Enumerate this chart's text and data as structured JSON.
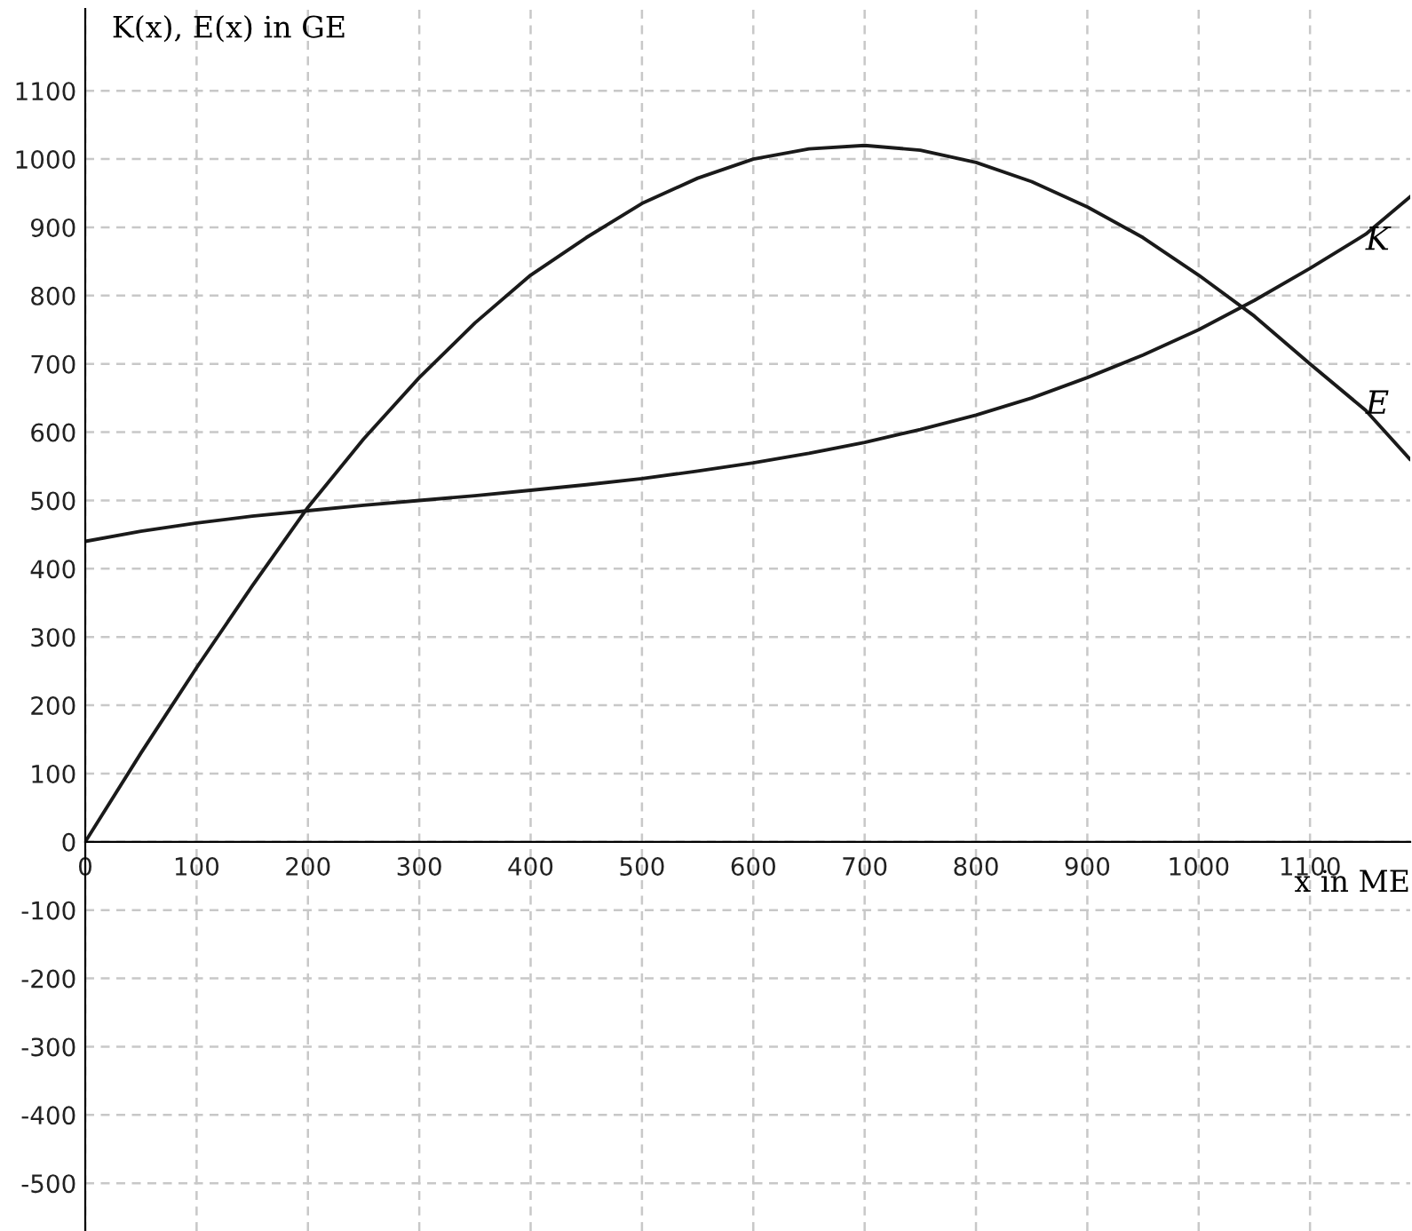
{
  "chart_data": {
    "type": "line",
    "xlabel": "x in ME",
    "ylabel": "K(x), E(x) in GE",
    "x": [
      0,
      50,
      100,
      150,
      200,
      250,
      300,
      350,
      400,
      450,
      500,
      550,
      600,
      650,
      700,
      750,
      800,
      850,
      900,
      950,
      1000,
      1050,
      1100,
      1150,
      1190
    ],
    "series": [
      {
        "color": "#1a1a1a",
        "values": [
          440,
          455,
          467,
          477,
          485,
          493,
          500,
          507,
          515,
          523,
          532,
          543,
          555,
          569,
          585,
          604,
          625,
          650,
          680,
          713,
          750,
          793,
          840,
          890,
          945
        ]
      },
      {
        "color": "#1a1a1a",
        "values": [
          0,
          130,
          255,
          375,
          490,
          590,
          680,
          760,
          830,
          885,
          935,
          972,
          1000,
          1015,
          1020,
          1013,
          995,
          967,
          930,
          885,
          830,
          770,
          700,
          632,
          560
        ]
      }
    ],
    "annotations": [
      {
        "text": "K",
        "x": 1150,
        "y": 880
      },
      {
        "text": "E",
        "x": 1150,
        "y": 640
      }
    ],
    "xlim": [
      0,
      1190
    ],
    "ylim": [
      -570,
      1220
    ],
    "xticks": [
      0,
      100,
      200,
      300,
      400,
      500,
      600,
      700,
      800,
      900,
      1000,
      1100
    ],
    "yticks": [
      -500,
      -400,
      -300,
      -200,
      -100,
      0,
      100,
      200,
      300,
      400,
      500,
      600,
      700,
      800,
      900,
      1000,
      1100
    ],
    "grid": true,
    "line_style": "solid",
    "marker": "none"
  }
}
